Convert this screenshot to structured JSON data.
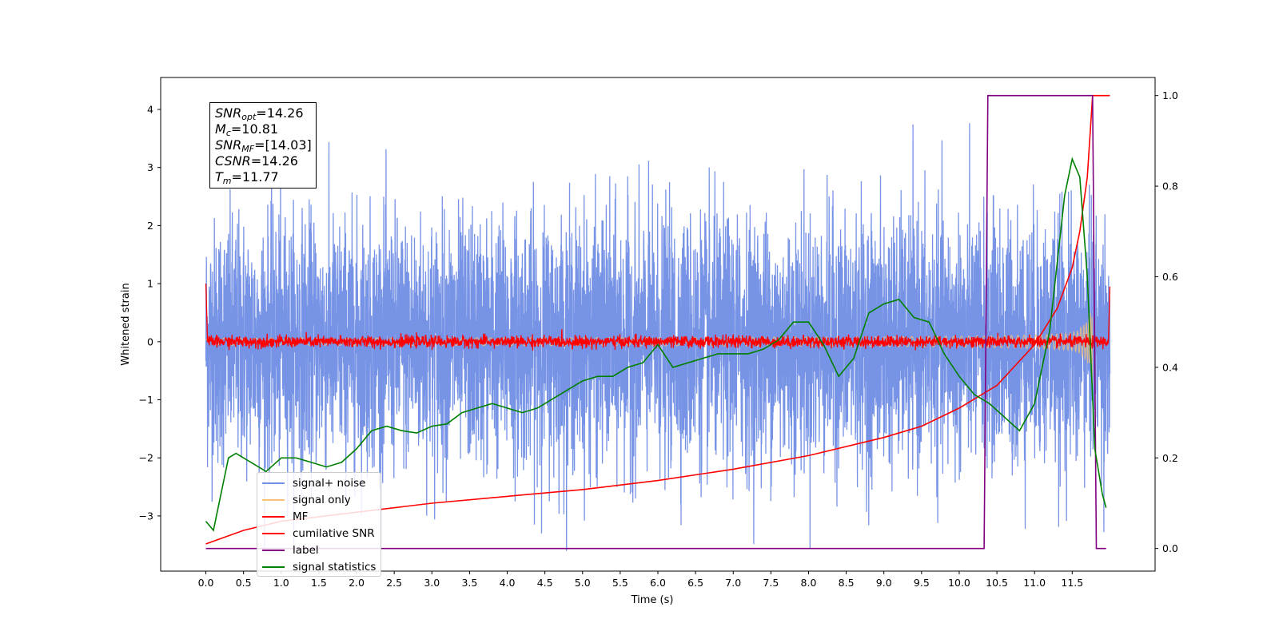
{
  "chart_data": {
    "type": "line",
    "xlabel": "Time (s)",
    "ylabel": "Whitened strain",
    "xlim": [
      -0.6,
      12.6
    ],
    "ylim": [
      -3.95,
      4.55
    ],
    "ylim_right": [
      -0.05,
      1.04
    ],
    "x_ticks": [
      "0.0",
      "0.5",
      "1.0",
      "1.5",
      "2.0",
      "2.5",
      "3.0",
      "3.5",
      "4.0",
      "4.5",
      "5.0",
      "5.5",
      "6.0",
      "6.5",
      "7.0",
      "7.5",
      "8.0",
      "8.5",
      "9.0",
      "9.5",
      "10.0",
      "10.5",
      "11.0",
      "11.5"
    ],
    "y_ticks_left": [
      "4",
      "3",
      "2",
      "1",
      "0",
      "−1",
      "−2",
      "−3"
    ],
    "y_tick_values_left": [
      4,
      3,
      2,
      1,
      0,
      -1,
      -2,
      -3
    ],
    "y_ticks_right": [
      "1.0",
      "0.8",
      "0.6",
      "0.4",
      "0.2",
      "0.0"
    ],
    "y_tick_values_right": [
      1.0,
      0.8,
      0.6,
      0.4,
      0.2,
      0.0
    ],
    "annotation": {
      "snr_opt": "14.26",
      "mc": "10.81",
      "snr_mf": "[14.03]",
      "csnr": "14.26",
      "tm": "11.77"
    },
    "series": [
      {
        "name": "signal+ noise",
        "color": "#7390e4",
        "axis": "left",
        "description": "whitened noisy strain, amplitude approx ±2.5 with peaks to ±4",
        "x_range": [
          0.0,
          12.0
        ]
      },
      {
        "name": "signal only",
        "color": "#f5c27a",
        "axis": "left",
        "description": "chirp signal growing in amplitude, merger near 11.77 s",
        "x_range": [
          0.0,
          11.77
        ]
      },
      {
        "name": "MF",
        "color": "#ff0000",
        "axis": "left",
        "description": "matched filter output near 0",
        "x_range": [
          0.0,
          12.0
        ]
      },
      {
        "name": "cumilative SNR",
        "color": "#ff0000",
        "axis": "right",
        "x": [
          0.0,
          0.5,
          1.0,
          2.0,
          3.0,
          4.0,
          5.0,
          6.0,
          7.0,
          8.0,
          9.0,
          9.5,
          10.0,
          10.5,
          11.0,
          11.3,
          11.5,
          11.6,
          11.7,
          11.77,
          12.0
        ],
        "y": [
          0.01,
          0.04,
          0.06,
          0.08,
          0.1,
          0.115,
          0.13,
          0.15,
          0.175,
          0.205,
          0.245,
          0.27,
          0.31,
          0.36,
          0.45,
          0.53,
          0.62,
          0.7,
          0.82,
          1.0,
          1.0
        ]
      },
      {
        "name": "label",
        "color": "#800080",
        "axis": "right",
        "x": [
          0.0,
          10.33,
          10.38,
          11.77,
          11.82,
          11.95
        ],
        "y": [
          0.0,
          0.0,
          1.0,
          1.0,
          0.0,
          0.0
        ]
      },
      {
        "name": "signal statistics",
        "color": "#008000",
        "axis": "right",
        "x": [
          0.0,
          0.1,
          0.2,
          0.3,
          0.4,
          0.6,
          0.8,
          1.0,
          1.2,
          1.4,
          1.6,
          1.8,
          2.0,
          2.2,
          2.4,
          2.6,
          2.8,
          3.0,
          3.2,
          3.4,
          3.6,
          3.8,
          4.0,
          4.2,
          4.4,
          4.6,
          4.8,
          5.0,
          5.2,
          5.4,
          5.6,
          5.8,
          6.0,
          6.2,
          6.4,
          6.6,
          6.8,
          7.0,
          7.2,
          7.4,
          7.6,
          7.8,
          8.0,
          8.2,
          8.4,
          8.6,
          8.8,
          9.0,
          9.2,
          9.4,
          9.6,
          9.8,
          10.0,
          10.2,
          10.4,
          10.6,
          10.8,
          11.0,
          11.2,
          11.4,
          11.5,
          11.6,
          11.7,
          11.8,
          11.9,
          11.95
        ],
        "y": [
          0.06,
          0.04,
          0.12,
          0.2,
          0.21,
          0.19,
          0.17,
          0.2,
          0.2,
          0.19,
          0.18,
          0.19,
          0.22,
          0.26,
          0.27,
          0.26,
          0.255,
          0.27,
          0.275,
          0.3,
          0.31,
          0.32,
          0.31,
          0.3,
          0.31,
          0.33,
          0.35,
          0.37,
          0.38,
          0.38,
          0.4,
          0.41,
          0.45,
          0.4,
          0.41,
          0.42,
          0.43,
          0.43,
          0.43,
          0.44,
          0.46,
          0.5,
          0.5,
          0.45,
          0.38,
          0.42,
          0.52,
          0.54,
          0.55,
          0.51,
          0.5,
          0.43,
          0.38,
          0.34,
          0.32,
          0.29,
          0.26,
          0.32,
          0.48,
          0.78,
          0.86,
          0.82,
          0.6,
          0.22,
          0.12,
          0.09
        ]
      }
    ]
  }
}
